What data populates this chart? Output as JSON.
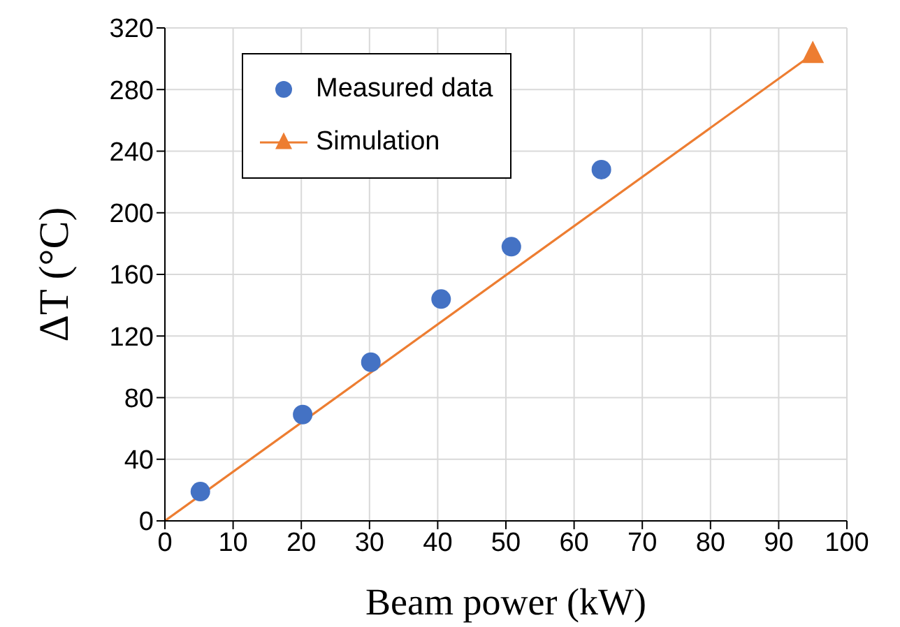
{
  "chart_data": {
    "type": "scatter",
    "xlabel": "Beam power (kW)",
    "ylabel": "ΔT (°C)",
    "xlim": [
      0,
      100
    ],
    "xticks": [
      0,
      10,
      20,
      30,
      40,
      50,
      60,
      70,
      80,
      90,
      100
    ],
    "ylim": [
      0,
      320
    ],
    "yticks": [
      0,
      40,
      80,
      120,
      160,
      200,
      240,
      280,
      320
    ],
    "grid": true,
    "legend": "top left",
    "series": [
      {
        "name": "Measured data",
        "marker": "circle",
        "color": "#4472c4",
        "x": [
          5.2,
          20.2,
          30.2,
          40.5,
          50.8,
          64
        ],
        "values": [
          19,
          69,
          103,
          144,
          178,
          228
        ]
      },
      {
        "name": "Simulation",
        "type": "line",
        "marker": "triangle",
        "color": "#ed7d31",
        "x": [
          0,
          95
        ],
        "values": [
          0,
          303
        ]
      }
    ]
  }
}
